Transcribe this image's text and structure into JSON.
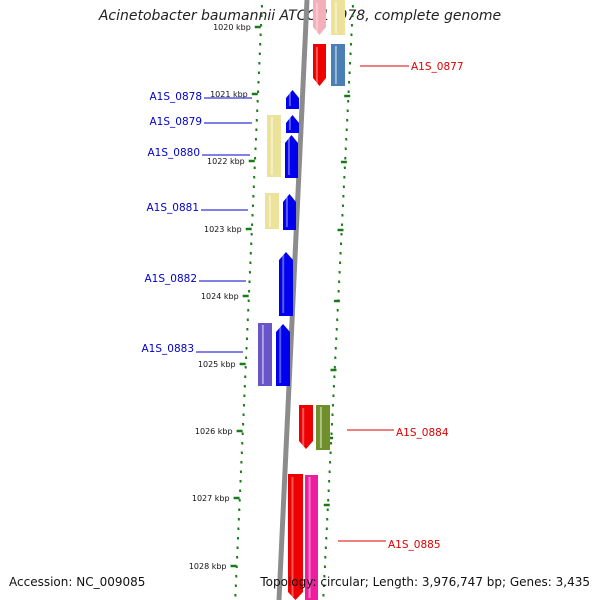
{
  "title": "Acinetobacter baumannii ATCC 17978, complete genome",
  "accession": "Accession: NC_009085",
  "topology": "Topology: circular; Length: 3,976,747 bp; Genes: 3,435",
  "colors": {
    "backbone": "#8c8c8c",
    "tick": "#1a7a1a",
    "label_left": "#0000cc",
    "label_right": "#dd0000",
    "gene_blue": "#0000ee",
    "gene_red": "#ee0000",
    "gene_yellow": "#ece29a",
    "gene_steel": "#4a7fb5",
    "gene_purple": "#6a55c8",
    "gene_olive": "#6f8f2a",
    "gene_pink": "#ee1e9e"
  },
  "kbp_labels": [
    "1020 kbp",
    "1021 kbp",
    "1022 kbp",
    "1023 kbp",
    "1024 kbp",
    "1025 kbp",
    "1026 kbp",
    "1027 kbp",
    "1028 kbp"
  ],
  "genes": [
    {
      "name": "A1S_0877",
      "strand": "right"
    },
    {
      "name": "A1S_0878",
      "strand": "left"
    },
    {
      "name": "A1S_0879",
      "strand": "left"
    },
    {
      "name": "A1S_0880",
      "strand": "left"
    },
    {
      "name": "A1S_0881",
      "strand": "left"
    },
    {
      "name": "A1S_0882",
      "strand": "left"
    },
    {
      "name": "A1S_0883",
      "strand": "left"
    },
    {
      "name": "A1S_0884",
      "strand": "right"
    },
    {
      "name": "A1S_0885",
      "strand": "right"
    }
  ]
}
